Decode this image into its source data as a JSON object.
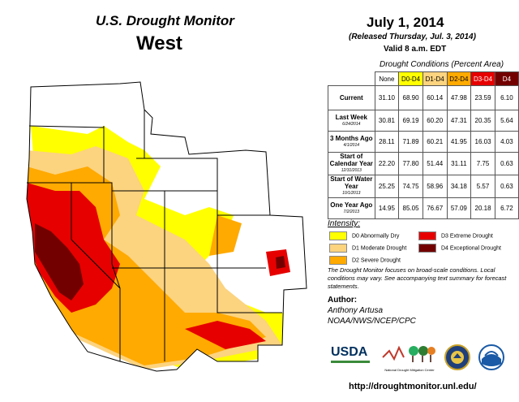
{
  "header": {
    "title_us": "U.S. Drought Monitor",
    "title_region": "West",
    "date": "July 1, 2014",
    "released": "(Released Thursday, Jul. 3, 2014)",
    "valid": "Valid  8 a.m. EDT"
  },
  "table": {
    "caption": "Drought Conditions (Percent Area)",
    "columns": [
      {
        "label": "None",
        "color": "#ffffff"
      },
      {
        "label": "D0-D4",
        "color": "#ffff00"
      },
      {
        "label": "D1-D4",
        "color": "#fcd37f"
      },
      {
        "label": "D2-D4",
        "color": "#ffaa00"
      },
      {
        "label": "D3-D4",
        "color": "#e60000"
      },
      {
        "label": "D4",
        "color": "#730000"
      }
    ],
    "rows": [
      {
        "label": "Current",
        "sub": "",
        "values": [
          "31.10",
          "68.90",
          "60.14",
          "47.98",
          "23.59",
          "6.10"
        ]
      },
      {
        "label": "Last Week",
        "sub": "6/24/2014",
        "values": [
          "30.81",
          "69.19",
          "60.20",
          "47.31",
          "20.35",
          "5.64"
        ]
      },
      {
        "label": "3 Months Ago",
        "sub": "4/1/2014",
        "values": [
          "28.11",
          "71.89",
          "60.21",
          "41.95",
          "16.03",
          "4.03"
        ]
      },
      {
        "label": "Start of Calendar Year",
        "sub": "12/31/2013",
        "values": [
          "22.20",
          "77.80",
          "51.44",
          "31.11",
          "7.75",
          "0.63"
        ]
      },
      {
        "label": "Start of Water Year",
        "sub": "10/1/2013",
        "values": [
          "25.25",
          "74.75",
          "58.96",
          "34.18",
          "5.57",
          "0.63"
        ]
      },
      {
        "label": "One Year Ago",
        "sub": "7/2/2013",
        "values": [
          "14.95",
          "85.05",
          "76.67",
          "57.09",
          "20.18",
          "6.72"
        ]
      }
    ]
  },
  "legend": {
    "title": "Intensity:",
    "items": [
      {
        "label": "D0 Abnormally Dry",
        "color": "#ffff00"
      },
      {
        "label": "D1 Moderate Drought",
        "color": "#fcd37f"
      },
      {
        "label": "D2 Severe Drought",
        "color": "#ffaa00"
      },
      {
        "label": "D3 Extreme Drought",
        "color": "#e60000"
      },
      {
        "label": "D4 Exceptional Drought",
        "color": "#730000"
      }
    ]
  },
  "note": "The Drought Monitor focuses on broad-scale conditions. Local conditions may vary. See accompanying text summary for forecast statements.",
  "author": {
    "heading": "Author:",
    "name": "Anthony Artusa",
    "org": "NOAA/NWS/NCEP/CPC"
  },
  "logos": {
    "usda": "USDA",
    "ndmc": "National Drought Mitigation Center"
  },
  "url": "http://droughtmonitor.unl.edu/"
}
